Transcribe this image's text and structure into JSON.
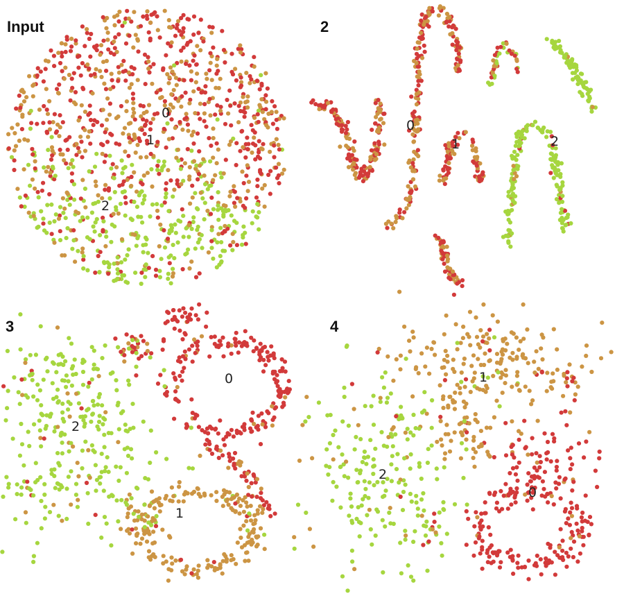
{
  "colors": {
    "class_0": "#d23a3a",
    "class_1": "#cc9544",
    "class_2": "#a6d63f",
    "background": "#ffffff",
    "text": "#222222"
  },
  "chart_data": [
    {
      "type": "scatter",
      "title": "Input",
      "cluster_labels": [
        "0",
        "1",
        "2"
      ],
      "series": [
        {
          "name": "0",
          "color": "#d23a3a",
          "count": 380
        },
        {
          "name": "1",
          "color": "#cc9544",
          "count": 380
        },
        {
          "name": "2",
          "color": "#a6d63f",
          "count": 380
        }
      ],
      "axes_visible": false
    },
    {
      "type": "scatter",
      "title": "2",
      "cluster_labels": [
        "0",
        "1",
        "2"
      ],
      "series": [
        {
          "name": "0",
          "color": "#d23a3a"
        },
        {
          "name": "1",
          "color": "#cc9544"
        },
        {
          "name": "2",
          "color": "#a6d63f"
        }
      ],
      "axes_visible": false
    },
    {
      "type": "scatter",
      "title": "3",
      "cluster_labels": [
        "0",
        "1",
        "2"
      ],
      "series": [
        {
          "name": "0",
          "color": "#d23a3a"
        },
        {
          "name": "1",
          "color": "#cc9544"
        },
        {
          "name": "2",
          "color": "#a6d63f"
        }
      ],
      "axes_visible": false
    },
    {
      "type": "scatter",
      "title": "4",
      "cluster_labels": [
        "0",
        "1",
        "2"
      ],
      "series": [
        {
          "name": "0",
          "color": "#d23a3a"
        },
        {
          "name": "1",
          "color": "#cc9544"
        },
        {
          "name": "2",
          "color": "#a6d63f"
        }
      ],
      "axes_visible": false
    }
  ]
}
